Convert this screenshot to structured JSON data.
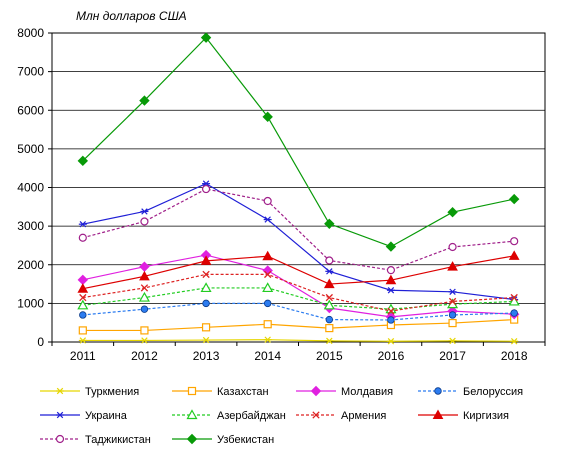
{
  "chart_data": {
    "type": "line",
    "title": "",
    "unit_label": "Млн долларов США",
    "xlabel": "",
    "ylabel": "",
    "x": [
      "2011",
      "2012",
      "2013",
      "2014",
      "2015",
      "2016",
      "2017",
      "2018"
    ],
    "ylim": [
      0,
      8000
    ],
    "yticks": [
      0,
      1000,
      2000,
      3000,
      4000,
      5000,
      6000,
      7000,
      8000
    ],
    "grid": true,
    "legend_position": "bottom",
    "series": [
      {
        "name": "Туркмения",
        "color": "#e6d600",
        "dash": false,
        "marker": "asterisk",
        "values": [
          40,
          40,
          50,
          60,
          30,
          20,
          30,
          20
        ]
      },
      {
        "name": "Казахстан",
        "color": "#ffa500",
        "dash": false,
        "marker": "square-open",
        "values": [
          300,
          300,
          380,
          460,
          360,
          440,
          490,
          580
        ]
      },
      {
        "name": "Молдавия",
        "color": "#e020e0",
        "dash": false,
        "marker": "diamond-filled",
        "values": [
          1610,
          1950,
          2250,
          1850,
          880,
          650,
          800,
          720
        ]
      },
      {
        "name": "Белоруссия",
        "color": "#2c7cf0",
        "dash": true,
        "marker": "circle-filled",
        "values": [
          700,
          850,
          1000,
          1000,
          580,
          570,
          700,
          750
        ]
      },
      {
        "name": "Украина",
        "color": "#1f1fd6",
        "dash": false,
        "marker": "asterisk",
        "values": [
          3050,
          3380,
          4100,
          3170,
          1830,
          1340,
          1300,
          1100
        ]
      },
      {
        "name": "Азербайджан",
        "color": "#22cc22",
        "dash": true,
        "marker": "triangle-open",
        "values": [
          950,
          1150,
          1400,
          1400,
          950,
          850,
          980,
          1050
        ]
      },
      {
        "name": "Армения",
        "color": "#dd2222",
        "dash": true,
        "marker": "x",
        "values": [
          1150,
          1400,
          1750,
          1750,
          1150,
          800,
          1050,
          1150
        ]
      },
      {
        "name": "Киргизия",
        "color": "#dd0000",
        "dash": false,
        "marker": "triangle-filled",
        "values": [
          1380,
          1700,
          2100,
          2220,
          1500,
          1600,
          1950,
          2230
        ]
      },
      {
        "name": "Таджикистан",
        "color": "#a0208a",
        "dash": true,
        "marker": "circle-open",
        "values": [
          2700,
          3120,
          3960,
          3650,
          2110,
          1860,
          2460,
          2610
        ]
      },
      {
        "name": "Узбекистан",
        "color": "#089a08",
        "dash": false,
        "marker": "diamond-filled",
        "values": [
          4690,
          6250,
          7880,
          5830,
          3060,
          2470,
          3360,
          3700
        ]
      }
    ]
  }
}
